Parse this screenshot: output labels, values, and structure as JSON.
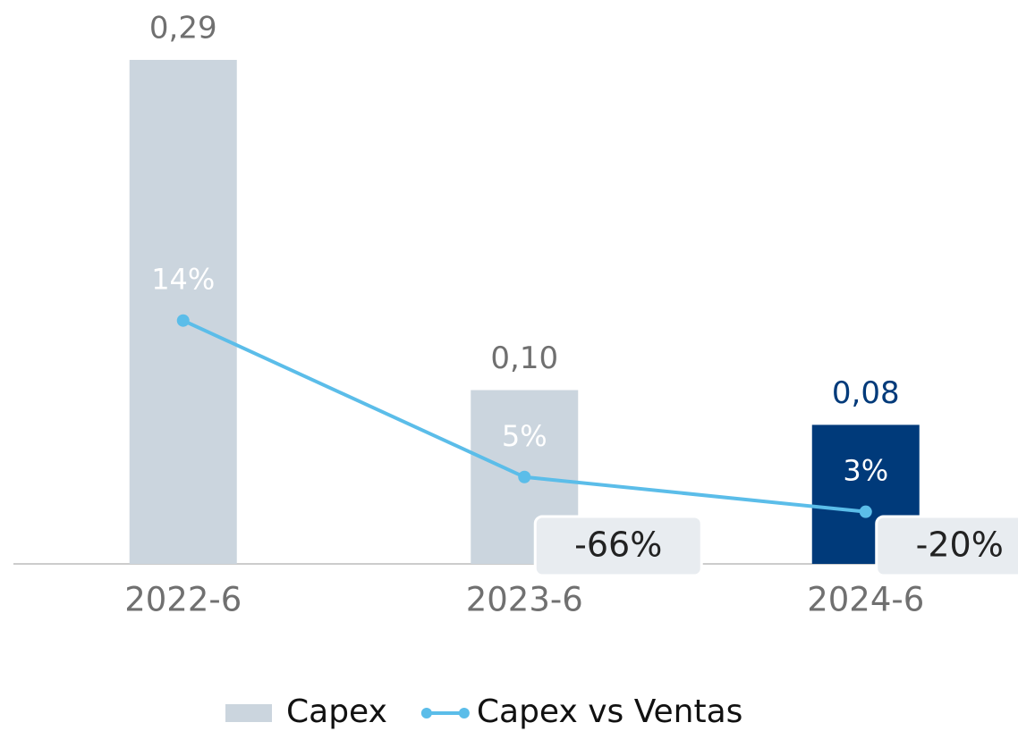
{
  "chart_data": {
    "type": "bar",
    "categories": [
      "2022-6",
      "2023-6",
      "2024-6"
    ],
    "series": [
      {
        "name": "Capex",
        "type": "bar",
        "color": "#cbd5de",
        "colors": [
          "#cbd5de",
          "#cbd5de",
          "#003a7a"
        ],
        "label_colors": [
          "#707070",
          "#707070",
          "#003a7a"
        ],
        "values": [
          0.29,
          0.1,
          0.08
        ],
        "value_labels": [
          "0,29",
          "0,10",
          "0,08"
        ]
      },
      {
        "name": "Capex vs Ventas",
        "type": "line",
        "axis": "y2",
        "color": "#5bbde9",
        "values": [
          14,
          5,
          3
        ],
        "value_labels": [
          "14%",
          "5%",
          "3%"
        ]
      }
    ],
    "annotations": [
      null,
      "-66%",
      "-20%"
    ],
    "ylim": [
      0,
      0.29
    ],
    "y2lim": [
      0,
      29
    ],
    "legend": "bottom"
  }
}
